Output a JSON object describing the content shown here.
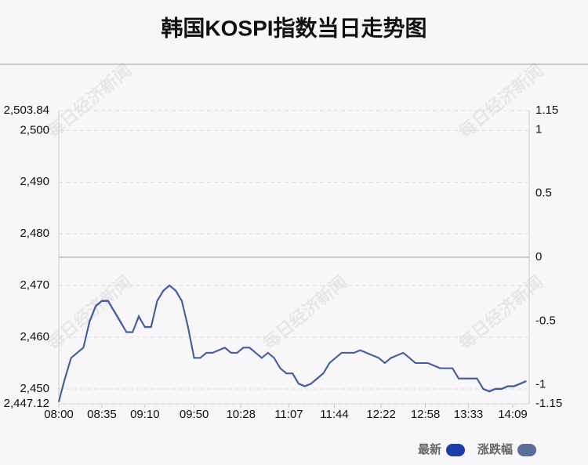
{
  "chart_data": {
    "type": "line",
    "title": "韩国KOSPI指数当日走势图",
    "watermark": "每日经济新闻",
    "x": [
      "08:00",
      "08:05",
      "08:10",
      "08:15",
      "08:20",
      "08:25",
      "08:30",
      "08:35",
      "08:40",
      "08:45",
      "08:50",
      "08:55",
      "09:00",
      "09:05",
      "09:10",
      "09:15",
      "09:20",
      "09:25",
      "09:30",
      "09:35",
      "09:40",
      "09:45",
      "09:50",
      "09:55",
      "10:00",
      "10:05",
      "10:10",
      "10:15",
      "10:20",
      "10:25",
      "10:30",
      "10:35",
      "10:40",
      "10:45",
      "10:50",
      "10:55",
      "11:00",
      "11:05",
      "11:10",
      "11:15",
      "11:20",
      "11:25",
      "11:30",
      "11:35",
      "11:40",
      "11:45",
      "11:50",
      "11:55",
      "12:00",
      "12:05",
      "12:10",
      "12:15",
      "12:20",
      "12:25",
      "12:30",
      "12:35",
      "12:40",
      "12:45",
      "12:50",
      "12:55",
      "13:00",
      "13:05",
      "13:10",
      "13:15",
      "13:20",
      "13:25",
      "13:30",
      "13:35",
      "13:40",
      "13:45",
      "13:50",
      "13:55",
      "14:00",
      "14:05",
      "14:10",
      "14:15",
      "14:20"
    ],
    "series": [
      {
        "name": "最新",
        "color": "#1a3da8",
        "values": [
          2447.5,
          2452,
          2456,
          2457,
          2458,
          2463,
          2466,
          2467,
          2467,
          2465,
          2463,
          2461,
          2461,
          2464,
          2462,
          2462,
          2467,
          2469,
          2470,
          2469,
          2467,
          2462,
          2456,
          2456,
          2457,
          2457,
          2457.5,
          2458,
          2457,
          2457,
          2458,
          2458,
          2457,
          2456,
          2457,
          2456,
          2454,
          2453,
          2453,
          2451,
          2450.5,
          2451,
          2452,
          2453,
          2455,
          2456,
          2457,
          2457,
          2457,
          2457.5,
          2457,
          2456.5,
          2456,
          2455,
          2456,
          2456.5,
          2457,
          2456,
          2455,
          2455,
          2455,
          2454.5,
          2454,
          2454,
          2454,
          2452,
          2452,
          2452,
          2452,
          2450,
          2449.5,
          2450,
          2450,
          2450.5,
          2450.5,
          2451,
          2451.5
        ]
      },
      {
        "name": "涨跌幅",
        "color": "#5b6e9a",
        "axis": "y2",
        "values": [
          -1.13,
          -0.95,
          -0.79,
          -0.75,
          -0.71,
          -0.5,
          -0.38,
          -0.34,
          -0.34,
          -0.42,
          -0.5,
          -0.59,
          -0.59,
          -0.46,
          -0.55,
          -0.55,
          -0.34,
          -0.26,
          -0.22,
          -0.26,
          -0.34,
          -0.55,
          -0.79,
          -0.79,
          -0.75,
          -0.75,
          -0.73,
          -0.71,
          -0.75,
          -0.75,
          -0.71,
          -0.71,
          -0.75,
          -0.79,
          -0.75,
          -0.79,
          -0.87,
          -0.91,
          -0.91,
          -0.99,
          -1.01,
          -0.99,
          -0.95,
          -0.91,
          -0.83,
          -0.79,
          -0.75,
          -0.75,
          -0.75,
          -0.73,
          -0.75,
          -0.77,
          -0.79,
          -0.83,
          -0.79,
          -0.77,
          -0.75,
          -0.79,
          -0.83,
          -0.83,
          -0.83,
          -0.85,
          -0.87,
          -0.87,
          -0.87,
          -0.95,
          -0.95,
          -0.95,
          -0.95,
          -1.03,
          -1.05,
          -1.03,
          -1.03,
          -1.01,
          -1.01,
          -0.99,
          -0.97
        ]
      }
    ],
    "xticks": [
      "08:00",
      "08:35",
      "09:10",
      "09:50",
      "10:28",
      "11:07",
      "11:44",
      "12:22",
      "12:58",
      "13:33",
      "14:09"
    ],
    "ylim": [
      2447.12,
      2503.84
    ],
    "yticks": [
      {
        "value": 2503.84,
        "label": "2,503.84"
      },
      {
        "value": 2500,
        "label": "2,500"
      },
      {
        "value": 2490,
        "label": "2,490"
      },
      {
        "value": 2480,
        "label": "2,480"
      },
      {
        "value": 2470,
        "label": "2,470"
      },
      {
        "value": 2460,
        "label": "2,460"
      },
      {
        "value": 2450,
        "label": "2,450"
      },
      {
        "value": 2447.12,
        "label": "2,447.12"
      }
    ],
    "y2lim": [
      -1.15,
      1.15
    ],
    "y2ticks": [
      1.15,
      1,
      0.5,
      0,
      -0.5,
      -1,
      -1.15
    ],
    "grid": true
  }
}
